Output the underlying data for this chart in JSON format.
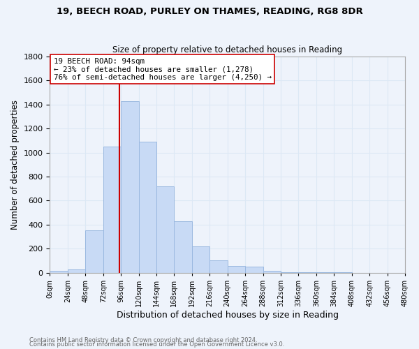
{
  "title1": "19, BEECH ROAD, PURLEY ON THAMES, READING, RG8 8DR",
  "title2": "Size of property relative to detached houses in Reading",
  "xlabel": "Distribution of detached houses by size in Reading",
  "ylabel": "Number of detached properties",
  "bin_edges": [
    0,
    24,
    48,
    72,
    96,
    120,
    144,
    168,
    192,
    216,
    240,
    264,
    288,
    312,
    336,
    360,
    384,
    408,
    432,
    456,
    480
  ],
  "bar_heights": [
    15,
    30,
    350,
    1050,
    1430,
    1090,
    720,
    430,
    220,
    100,
    55,
    50,
    18,
    5,
    2,
    2,
    1,
    0,
    0,
    0
  ],
  "bar_color": "#c8daf5",
  "bar_edgecolor": "#9ab8e0",
  "property_sqm": 94,
  "vline_color": "#cc0000",
  "annotation_line1": "19 BEECH ROAD: 94sqm",
  "annotation_line2": "← 23% of detached houses are smaller (1,278)",
  "annotation_line3": "76% of semi-detached houses are larger (4,250) →",
  "annotation_box_edgecolor": "#cc0000",
  "annotation_box_facecolor": "#ffffff",
  "ylim": [
    0,
    1800
  ],
  "yticks": [
    0,
    200,
    400,
    600,
    800,
    1000,
    1200,
    1400,
    1600,
    1800
  ],
  "xtick_labels": [
    "0sqm",
    "24sqm",
    "48sqm",
    "72sqm",
    "96sqm",
    "120sqm",
    "144sqm",
    "168sqm",
    "192sqm",
    "216sqm",
    "240sqm",
    "264sqm",
    "288sqm",
    "312sqm",
    "336sqm",
    "360sqm",
    "384sqm",
    "408sqm",
    "432sqm",
    "456sqm",
    "480sqm"
  ],
  "footer1": "Contains HM Land Registry data © Crown copyright and database right 2024.",
  "footer2": "Contains public sector information licensed under the Open Government Licence v3.0.",
  "grid_color": "#dce8f5",
  "background_color": "#eef3fb"
}
